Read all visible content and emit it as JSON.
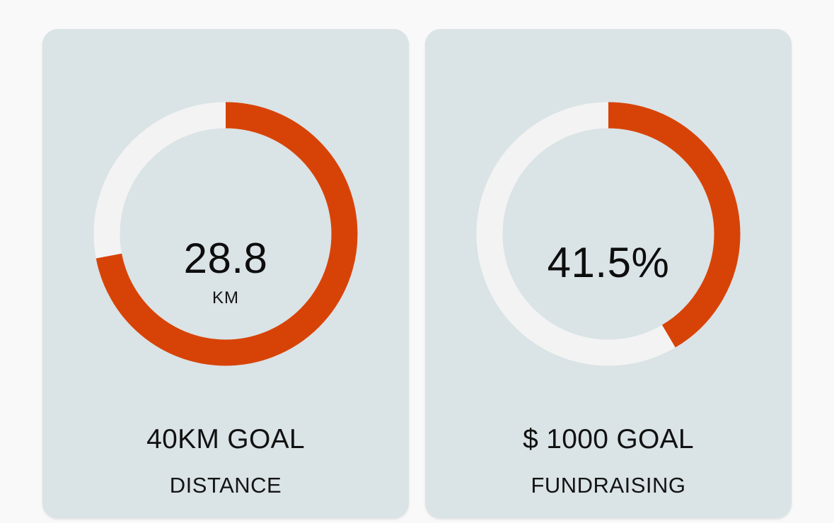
{
  "colors": {
    "page_background": "#f9f9f9",
    "card_background": "#dae3e6",
    "ring_track": "#f3f3f3",
    "ring_progress": "#d74307",
    "text": "#111111"
  },
  "cards": [
    {
      "center_value": "28.8",
      "center_unit": "KM",
      "goal_label": "40KM GOAL",
      "category_label": "DISTANCE",
      "progress_fraction": 0.72
    },
    {
      "center_value": "41.5%",
      "center_unit": "",
      "goal_label": "$ 1000 GOAL",
      "category_label": "FUNDRAISING",
      "progress_fraction": 0.415
    }
  ]
}
